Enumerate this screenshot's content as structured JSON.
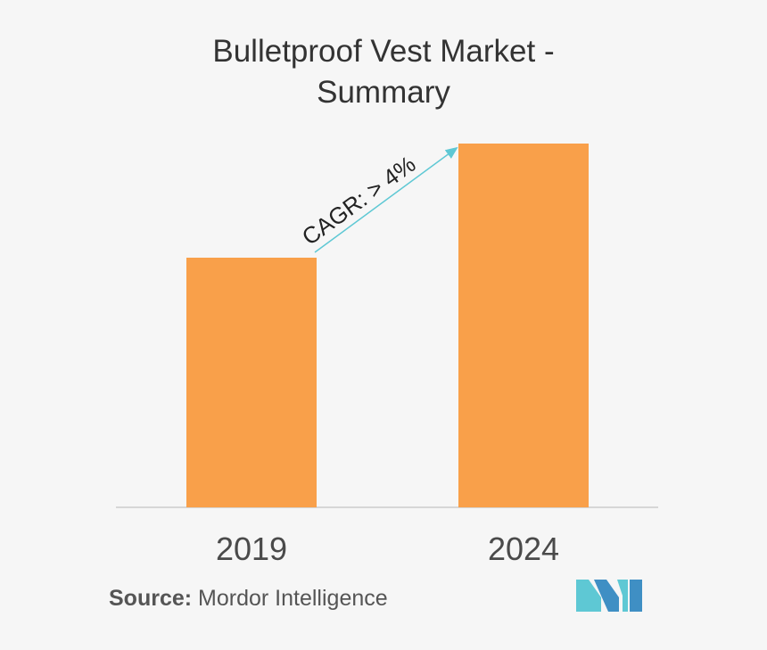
{
  "header": {
    "title_line1": "Bulletproof Vest Market -",
    "title_line2": "Summary"
  },
  "chart_data": {
    "type": "bar",
    "categories": [
      "2019",
      "2024"
    ],
    "values": [
      280,
      408
    ],
    "title": "Bulletproof Vest Market - Summary",
    "xlabel": "",
    "ylabel": "",
    "ylim": [
      0,
      420
    ],
    "grid": false,
    "legend": "none",
    "annotation": "CAGR: > 4%",
    "bar_color": "#f9a04a",
    "arrow_color": "#5ec8d4",
    "baseline_color": "#cccccc"
  },
  "footer": {
    "source_label": "Source:",
    "source_text": "Mordor Intelligence"
  },
  "logo": {
    "name": "mordor-intelligence-logo",
    "colors": [
      "#5ec8d4",
      "#3f8fc4"
    ]
  }
}
